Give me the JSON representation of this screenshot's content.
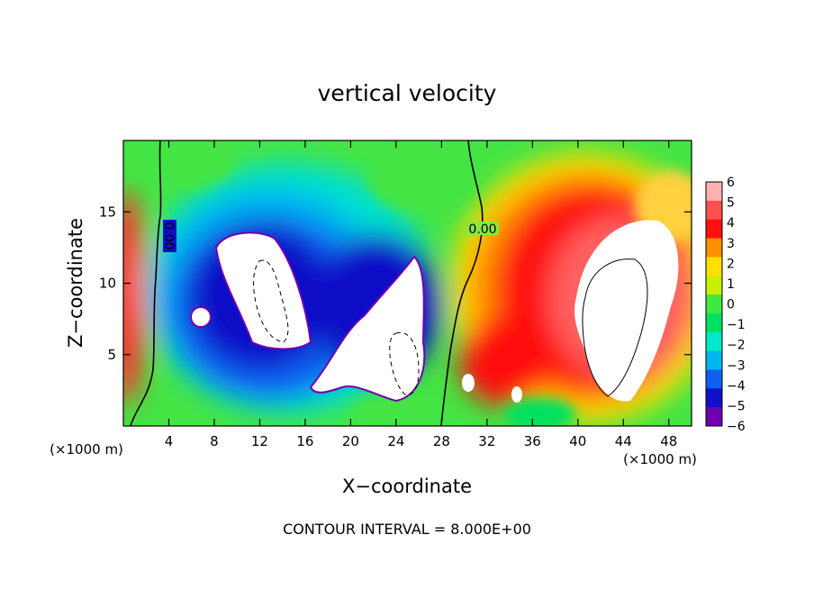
{
  "chart_data": {
    "type": "heatmap",
    "title": "vertical velocity",
    "xlabel": "X−coordinate",
    "ylabel": "Z−coordinate",
    "x_unit_left": "(×1000 m)",
    "x_unit_right": "(×1000 m)",
    "xlim": [
      0,
      50
    ],
    "ylim": [
      0,
      20
    ],
    "x_ticks": [
      4,
      8,
      12,
      16,
      20,
      24,
      28,
      32,
      36,
      40,
      44,
      48
    ],
    "y_ticks": [
      5,
      10,
      15
    ],
    "colorbar": {
      "ticks": [
        6,
        5,
        4,
        3,
        2,
        1,
        0,
        -1,
        -2,
        -3,
        -4,
        -5,
        -6
      ],
      "tick_labels": [
        "6",
        "5",
        "4",
        "3",
        "2",
        "1",
        "0",
        "−1",
        "−2",
        "−3",
        "−4",
        "−5",
        "−6"
      ],
      "colors": [
        "#ffb0b0",
        "#ff5050",
        "#ff1010",
        "#ff9000",
        "#ffe000",
        "#c8f000",
        "#40e840",
        "#00e060",
        "#00e8c8",
        "#00b8f0",
        "#1060f0",
        "#1010c8",
        "#7000b0"
      ]
    },
    "contour_labels": [
      "0.00",
      "0.00"
    ],
    "footer": "CONTOUR INTERVAL = 8.000E+00"
  }
}
